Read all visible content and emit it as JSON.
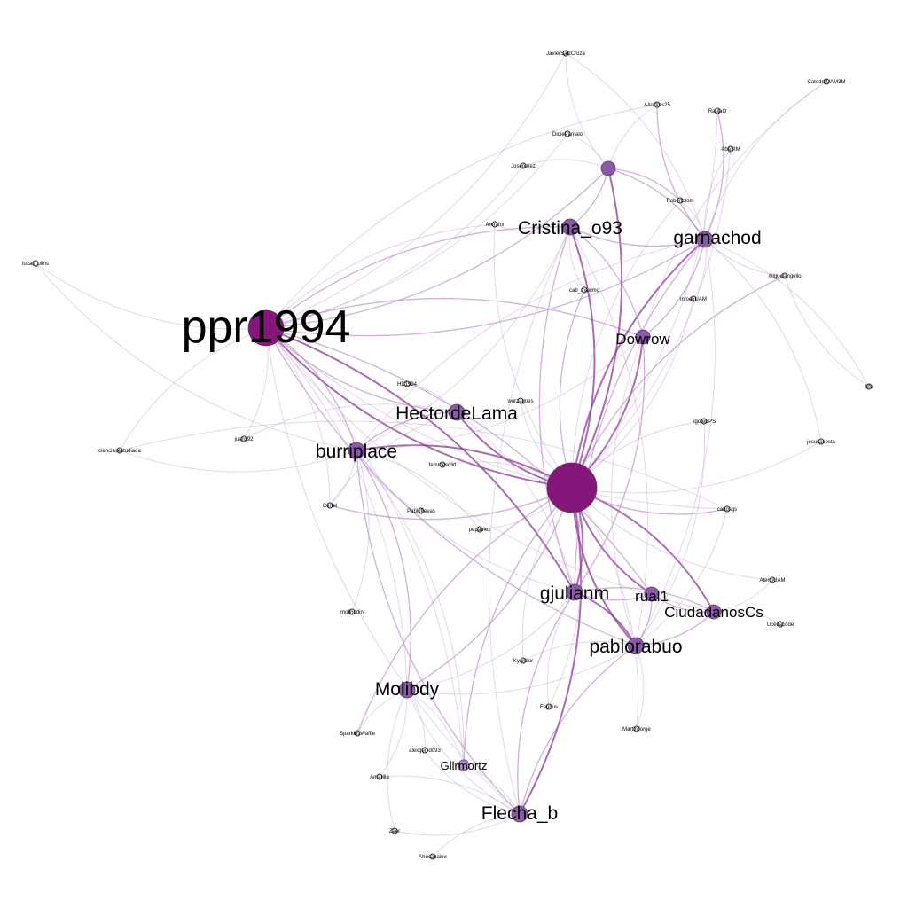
{
  "colors": {
    "background": "#ffffff",
    "hub_node": "#86177a",
    "major_node": "#8a5aa8",
    "minor_node": "#a88cc8",
    "small_node_fill": "#ffffff",
    "small_node_stroke": "#2a2a2a",
    "edge_strong": "#8e3a96",
    "edge_medium": "#b07cc2",
    "edge_light": "#c8aad8"
  },
  "nodes": [
    {
      "id": "hub",
      "label": "",
      "size": "hub"
    },
    {
      "id": "ppr1994",
      "label": "ppr1994",
      "size": "xl"
    },
    {
      "id": "cristina",
      "label": "Cristina_o93",
      "size": "large"
    },
    {
      "id": "garnachod",
      "label": "garnachod",
      "size": "large"
    },
    {
      "id": "dowrow",
      "label": "Dowrow",
      "size": "medium"
    },
    {
      "id": "hectordelama",
      "label": "HectordeLama",
      "size": "large"
    },
    {
      "id": "burriplace",
      "label": "burriplace",
      "size": "large"
    },
    {
      "id": "gjulianm",
      "label": "gjulianm",
      "size": "large"
    },
    {
      "id": "rual1",
      "label": "rual1",
      "size": "medium"
    },
    {
      "id": "ciudadanos",
      "label": "CiudadanosCs",
      "size": "medium"
    },
    {
      "id": "pablorabuo",
      "label": "pablorabuo",
      "size": "large"
    },
    {
      "id": "molibdy",
      "label": "Molibdy",
      "size": "large"
    },
    {
      "id": "gllrmortz",
      "label": "Gllrmortz",
      "size": "small"
    },
    {
      "id": "flecha",
      "label": "Flecha_b",
      "size": "large"
    },
    {
      "id": "topnode",
      "label": "",
      "size": "medium"
    },
    {
      "id": "javiersaiz",
      "label": "JavierSaizCruza",
      "size": "tiny"
    },
    {
      "id": "catedra",
      "label": "CatedraUAM3M",
      "size": "tiny"
    },
    {
      "id": "aandres",
      "label": "AAndres25",
      "size": "tiny"
    },
    {
      "id": "raulo",
      "label": "RaulaO",
      "size": "tiny"
    },
    {
      "id": "didiersilva",
      "label": "DidiePantalo",
      "size": "tiny"
    },
    {
      "id": "abasim",
      "label": "AbaSIM",
      "size": "tiny"
    },
    {
      "id": "joseperez",
      "label": "Joseperez",
      "size": "tiny"
    },
    {
      "id": "robertom",
      "label": "Robertolom",
      "size": "tiny"
    },
    {
      "id": "amrahx",
      "label": "Amrahx",
      "size": "tiny"
    },
    {
      "id": "lucas",
      "label": "lucas_olins",
      "size": "tiny"
    },
    {
      "id": "miguelangel",
      "label": "miguelangello",
      "size": "tiny"
    },
    {
      "id": "cabmaximo",
      "label": "cab_maximo",
      "size": "tiny"
    },
    {
      "id": "infoeuam",
      "label": "infoeuUAM",
      "size": "tiny"
    },
    {
      "id": "jkfw",
      "label": "jkfw",
      "size": "tiny"
    },
    {
      "id": "hd1994",
      "label": "HD1994",
      "size": "tiny"
    },
    {
      "id": "worzagnes",
      "label": "worzagnes",
      "size": "tiny"
    },
    {
      "id": "ligoteps",
      "label": "ligoteEPS",
      "size": "tiny"
    },
    {
      "id": "juanx92",
      "label": "juanx92",
      "size": "tiny"
    },
    {
      "id": "ciencias",
      "label": "cienciasestudiada",
      "size": "tiny"
    },
    {
      "id": "femmesolid",
      "label": "femmesolid",
      "size": "tiny"
    },
    {
      "id": "jesusacosta",
      "label": "jesusacosta",
      "size": "tiny"
    },
    {
      "id": "cerrel",
      "label": "Cerrel",
      "size": "tiny"
    },
    {
      "id": "pablofrevas",
      "label": "Pablofrevas",
      "size": "tiny"
    },
    {
      "id": "carlosgs",
      "label": "carlosgs",
      "size": "tiny"
    },
    {
      "id": "pepaplex",
      "label": "pepaplex",
      "size": "tiny"
    },
    {
      "id": "atenouam",
      "label": "AtenoUAM",
      "size": "tiny"
    },
    {
      "id": "molinodin",
      "label": "molinodin",
      "size": "tiny"
    },
    {
      "id": "ucedacode",
      "label": "Ucedacode",
      "size": "tiny"
    },
    {
      "id": "kyandor",
      "label": "Kyandor",
      "size": "tiny"
    },
    {
      "id": "espnus",
      "label": "Espnus",
      "size": "tiny"
    },
    {
      "id": "sparkles",
      "label": "SparklesWaffle",
      "size": "tiny"
    },
    {
      "id": "martinjorge",
      "label": "MartinJorge",
      "size": "tiny"
    },
    {
      "id": "alexgenido",
      "label": "alexgenido93",
      "size": "tiny"
    },
    {
      "id": "amarilla",
      "label": "Amarilla",
      "size": "tiny"
    },
    {
      "id": "zaer",
      "label": "Zaer",
      "size": "tiny"
    },
    {
      "id": "ahocanaine",
      "label": "Ahocanaine",
      "size": "tiny"
    }
  ],
  "edges": [
    [
      "ppr1994",
      "hub",
      "strong"
    ],
    [
      "ppr1994",
      "cristina",
      "medium"
    ],
    [
      "ppr1994",
      "garnachod",
      "medium"
    ],
    [
      "ppr1994",
      "burriplace",
      "medium"
    ],
    [
      "ppr1994",
      "hectordelama",
      "medium"
    ],
    [
      "ppr1994",
      "gjulianm",
      "strong"
    ],
    [
      "ppr1994",
      "pablorabuo",
      "medium"
    ],
    [
      "ppr1994",
      "molibdy",
      "light"
    ],
    [
      "ppr1994",
      "flecha",
      "light"
    ],
    [
      "ppr1994",
      "gllrmortz",
      "light"
    ],
    [
      "ppr1994",
      "javiersaiz",
      "light"
    ],
    [
      "ppr1994",
      "lucas",
      "light"
    ],
    [
      "ppr1994",
      "ciencias",
      "light"
    ],
    [
      "ppr1994",
      "juanx92",
      "light"
    ],
    [
      "ppr1994",
      "topnode",
      "medium"
    ],
    [
      "ppr1994",
      "aandres",
      "light"
    ],
    [
      "ppr1994",
      "joseperez",
      "light"
    ],
    [
      "ppr1994",
      "amrahx",
      "light"
    ],
    [
      "ppr1994",
      "didiersilva",
      "light"
    ],
    [
      "ppr1994",
      "dowrow",
      "medium"
    ],
    [
      "ppr1994",
      "carlosgs",
      "light"
    ],
    [
      "ppr1994",
      "rual1",
      "medium"
    ],
    [
      "ppr1994",
      "ciudadanos",
      "light"
    ],
    [
      "ppr1994",
      "cerrel",
      "light"
    ],
    [
      "hub",
      "cristina",
      "strong"
    ],
    [
      "hub",
      "garnachod",
      "strong"
    ],
    [
      "hub",
      "dowrow",
      "strong"
    ],
    [
      "hub",
      "hectordelama",
      "strong"
    ],
    [
      "hub",
      "burriplace",
      "strong"
    ],
    [
      "hub",
      "gjulianm",
      "strong"
    ],
    [
      "hub",
      "rual1",
      "strong"
    ],
    [
      "hub",
      "ciudadanos",
      "strong"
    ],
    [
      "hub",
      "pablorabuo",
      "strong"
    ],
    [
      "hub",
      "molibdy",
      "medium"
    ],
    [
      "hub",
      "gllrmortz",
      "medium"
    ],
    [
      "hub",
      "flecha",
      "strong"
    ],
    [
      "hub",
      "topnode",
      "strong"
    ],
    [
      "hub",
      "miguelangel",
      "medium"
    ],
    [
      "hub",
      "carlosgs",
      "medium"
    ],
    [
      "hub",
      "ligoteps",
      "light"
    ],
    [
      "hub",
      "jesusacosta",
      "light"
    ],
    [
      "hub",
      "cabmaximo",
      "medium"
    ],
    [
      "hub",
      "infoeuam",
      "light"
    ],
    [
      "hub",
      "worzagnes",
      "light"
    ],
    [
      "hub",
      "femmesolid",
      "light"
    ],
    [
      "hub",
      "pepaplex",
      "light"
    ],
    [
      "hub",
      "kyandor",
      "light"
    ],
    [
      "hub",
      "espnus",
      "light"
    ],
    [
      "hub",
      "sparkles",
      "medium"
    ],
    [
      "hub",
      "martinjorge",
      "light"
    ],
    [
      "hub",
      "atenouam",
      "light"
    ],
    [
      "hub",
      "amrahx",
      "light"
    ],
    [
      "hub",
      "abasim",
      "light"
    ],
    [
      "hub",
      "robertom",
      "light"
    ],
    [
      "hub",
      "raulo",
      "light"
    ],
    [
      "hub",
      "cerrel",
      "medium"
    ],
    [
      "cristina",
      "garnachod",
      "medium"
    ],
    [
      "cristina",
      "dowrow",
      "medium"
    ],
    [
      "cristina",
      "topnode",
      "medium"
    ],
    [
      "cristina",
      "burriplace",
      "light"
    ],
    [
      "cristina",
      "gjulianm",
      "medium"
    ],
    [
      "cristina",
      "pablorabuo",
      "light"
    ],
    [
      "cristina",
      "flecha",
      "light"
    ],
    [
      "cristina",
      "amrahx",
      "light"
    ],
    [
      "cristina",
      "cabmaximo",
      "light"
    ],
    [
      "garnachod",
      "dowrow",
      "medium"
    ],
    [
      "garnachod",
      "topnode",
      "medium"
    ],
    [
      "garnachod",
      "aandres",
      "medium"
    ],
    [
      "garnachod",
      "raulo",
      "medium"
    ],
    [
      "garnachod",
      "abasim",
      "light"
    ],
    [
      "garnachod",
      "robertom",
      "light"
    ],
    [
      "garnachod",
      "catedra",
      "light"
    ],
    [
      "garnachod",
      "miguelangel",
      "light"
    ],
    [
      "garnachod",
      "infoeuam",
      "light"
    ],
    [
      "garnachod",
      "burriplace",
      "light"
    ],
    [
      "garnachod",
      "pablorabuo",
      "light"
    ],
    [
      "garnachod",
      "gjulianm",
      "medium"
    ],
    [
      "dowrow",
      "gjulianm",
      "medium"
    ],
    [
      "dowrow",
      "pablorabuo",
      "light"
    ],
    [
      "dowrow",
      "burriplace",
      "light"
    ],
    [
      "hectordelama",
      "burriplace",
      "medium"
    ],
    [
      "hectordelama",
      "gjulianm",
      "light"
    ],
    [
      "hectordelama",
      "hd1994",
      "light"
    ],
    [
      "burriplace",
      "molibdy",
      "medium"
    ],
    [
      "burriplace",
      "flecha",
      "medium"
    ],
    [
      "burriplace",
      "gllrmortz",
      "light"
    ],
    [
      "burriplace",
      "pablofrevas",
      "light"
    ],
    [
      "burriplace",
      "cerrel",
      "light"
    ],
    [
      "burriplace",
      "gjulianm",
      "light"
    ],
    [
      "gjulianm",
      "pablorabuo",
      "strong"
    ],
    [
      "gjulianm",
      "rual1",
      "medium"
    ],
    [
      "gjulianm",
      "ciudadanos",
      "medium"
    ],
    [
      "gjulianm",
      "flecha",
      "medium"
    ],
    [
      "gjulianm",
      "molibdy",
      "light"
    ],
    [
      "gjulianm",
      "espnus",
      "light"
    ],
    [
      "rual1",
      "pablorabuo",
      "medium"
    ],
    [
      "rual1",
      "ciudadanos",
      "medium"
    ],
    [
      "ciudadanos",
      "pablorabuo",
      "medium"
    ],
    [
      "ciudadanos",
      "atenouam",
      "light"
    ],
    [
      "ciudadanos",
      "ucedacode",
      "light"
    ],
    [
      "pablorabuo",
      "flecha",
      "medium"
    ],
    [
      "pablorabuo",
      "martinjorge",
      "light"
    ],
    [
      "pablorabuo",
      "kyandor",
      "light"
    ],
    [
      "pablorabuo",
      "molibdy",
      "light"
    ],
    [
      "molibdy",
      "flecha",
      "light"
    ],
    [
      "molibdy",
      "gllrmortz",
      "light"
    ],
    [
      "molibdy",
      "sparkles",
      "light"
    ],
    [
      "molibdy",
      "amarilla",
      "light"
    ],
    [
      "molibdy",
      "zaer",
      "light"
    ],
    [
      "molibdy",
      "alexgenido",
      "light"
    ],
    [
      "flecha",
      "gllrmortz",
      "light"
    ],
    [
      "flecha",
      "zaer",
      "light"
    ],
    [
      "flecha",
      "ahocanaine",
      "light"
    ],
    [
      "flecha",
      "alexgenido",
      "light"
    ],
    [
      "flecha",
      "amarilla",
      "light"
    ],
    [
      "topnode",
      "aandres",
      "light"
    ],
    [
      "topnode",
      "didiersilva",
      "light"
    ],
    [
      "topnode",
      "javiersaiz",
      "light"
    ],
    [
      "topnode",
      "joseperez",
      "light"
    ],
    [
      "topnode",
      "robertom",
      "medium"
    ],
    [
      "lucas",
      "burriplace",
      "light"
    ],
    [
      "ciencias",
      "carlosgs",
      "light"
    ],
    [
      "ciencias",
      "burriplace",
      "light"
    ],
    [
      "juanx92",
      "hectordelama",
      "light"
    ],
    [
      "jkfw",
      "garnachod",
      "light"
    ],
    [
      "jkfw",
      "miguelangel",
      "light"
    ],
    [
      "catedra",
      "dowrow",
      "light"
    ],
    [
      "javiersaiz",
      "garnachod",
      "light"
    ],
    [
      "molinodin",
      "burriplace",
      "light"
    ],
    [
      "cerrel",
      "hectordelama",
      "light"
    ],
    [
      "pepaplex",
      "burriplace",
      "light"
    ],
    [
      "ligoteps",
      "pablorabuo",
      "light"
    ],
    [
      "jesusacosta",
      "garnachod",
      "light"
    ],
    [
      "carlosgs",
      "pablorabuo",
      "light"
    ]
  ]
}
